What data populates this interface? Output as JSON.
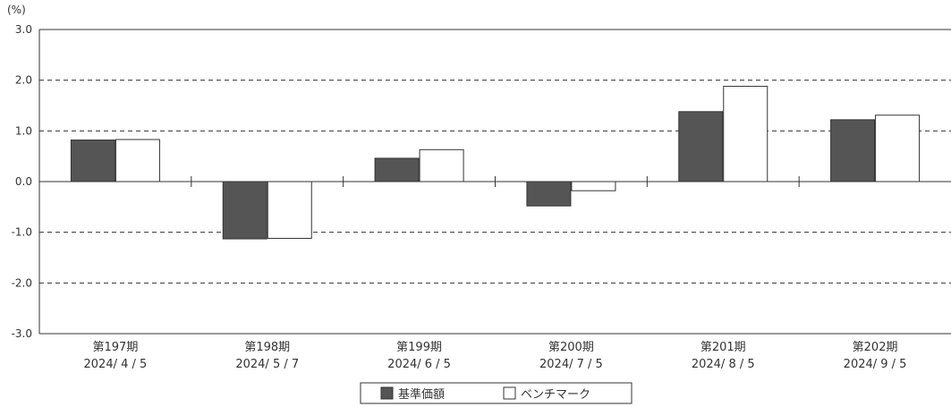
{
  "chart_data": {
    "type": "bar",
    "unit_label": "(%)",
    "categories": [
      {
        "line1": "第197期",
        "line2": "2024/ 4 / 5"
      },
      {
        "line1": "第198期",
        "line2": "2024/ 5 / 7"
      },
      {
        "line1": "第199期",
        "line2": "2024/ 6 / 5"
      },
      {
        "line1": "第200期",
        "line2": "2024/ 7 / 5"
      },
      {
        "line1": "第201期",
        "line2": "2024/ 8 / 5"
      },
      {
        "line1": "第202期",
        "line2": "2024/ 9 / 5"
      }
    ],
    "series": [
      {
        "name": "基準価額",
        "color": "#555555",
        "values": [
          0.82,
          -1.13,
          0.46,
          -0.48,
          1.38,
          1.22
        ]
      },
      {
        "name": "ベンチマーク",
        "color": "#ffffff",
        "values": [
          0.83,
          -1.12,
          0.63,
          -0.18,
          1.88,
          1.31
        ]
      }
    ],
    "ylim": [
      -3.0,
      3.0
    ],
    "yticks": [
      "3.0",
      "2.0",
      "1.0",
      "0.0",
      "-1.0",
      "-2.0",
      "-3.0"
    ],
    "grid": "dashed horizontal",
    "legend_position": "bottom-center"
  }
}
